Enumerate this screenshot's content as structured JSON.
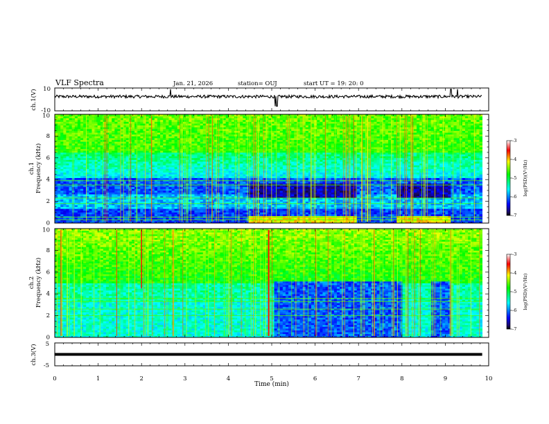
{
  "header": {
    "title": "VLF Spectra",
    "date": "Jan. 21, 2026",
    "station": "station= OUJ",
    "start": "start UT = 19: 20: 0"
  },
  "chart_data": [
    {
      "id": "ch1-waveform",
      "type": "line",
      "ylabel": "ch.1(V)",
      "ylim": [
        -10,
        10
      ],
      "yticks": [
        "10",
        "-10"
      ],
      "xlim": [
        0,
        10
      ],
      "level": 2.5,
      "spikes_minutes": [
        2.67,
        5.08,
        5.12,
        9.13,
        9.28
      ]
    },
    {
      "id": "ch1-spectrogram",
      "type": "heatmap",
      "ylabel_top": "ch.1",
      "ylabel": "Frequency (kHz)",
      "ylim": [
        0,
        10
      ],
      "yticks": [
        "0",
        "2",
        "4",
        "6",
        "8",
        "10"
      ],
      "xlim": [
        0,
        10
      ],
      "data_end_minutes": 9.85,
      "colorbar": {
        "label": "log(PSD)(V²/Hz)",
        "range": [
          -7,
          -3
        ],
        "ticks": [
          "-3",
          "-4",
          "-5",
          "-6",
          "-7"
        ]
      },
      "events_minutes": [
        {
          "start": 4.45,
          "end": 6.95,
          "kind": "low-frequency band"
        },
        {
          "start": 7.9,
          "end": 9.15,
          "kind": "low-frequency band"
        }
      ]
    },
    {
      "id": "ch2-spectrogram",
      "type": "heatmap",
      "ylabel_top": "ch.2",
      "ylabel": "Frequency (kHz)",
      "ylim": [
        0,
        10
      ],
      "yticks": [
        "0",
        "2",
        "4",
        "6",
        "8",
        "10"
      ],
      "xlim": [
        0,
        10
      ],
      "data_end_minutes": 9.85,
      "colorbar": {
        "label": "log(PSD)(V²/Hz)",
        "range": [
          -7,
          -3
        ],
        "ticks": [
          "-3",
          "-4",
          "-5",
          "-6",
          "-7"
        ]
      },
      "events_minutes": [
        {
          "start": 5.08,
          "end": 7.0,
          "kind": "low-power region"
        },
        {
          "start": 7.0,
          "end": 8.0,
          "kind": "low-power region"
        },
        {
          "start": 8.7,
          "end": 9.15,
          "kind": "low-power region"
        }
      ]
    },
    {
      "id": "ch3-waveform",
      "type": "line",
      "ylabel": "ch.3(V)",
      "ylim": [
        -5,
        5
      ],
      "yticks": [
        "5",
        "-5"
      ],
      "xlim": [
        0,
        10
      ],
      "level": 0
    }
  ],
  "xaxis": {
    "label": "Time (min)",
    "ticks": [
      "0",
      "1",
      "2",
      "3",
      "4",
      "5",
      "6",
      "7",
      "8",
      "9",
      "10"
    ]
  }
}
